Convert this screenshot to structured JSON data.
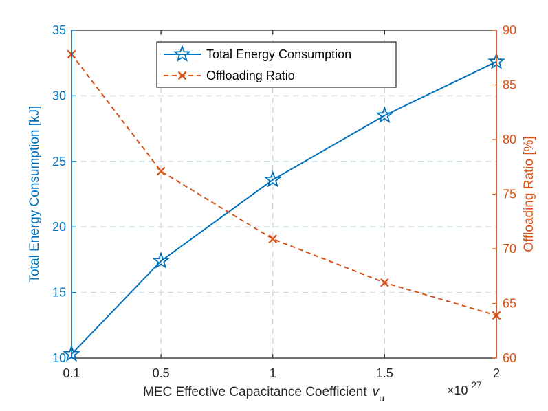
{
  "chart_data": {
    "type": "line",
    "x": [
      0.1,
      0.5,
      1,
      1.5,
      2
    ],
    "x_tick_labels": [
      "0.1",
      "0.5",
      "1",
      "1.5",
      "2"
    ],
    "xlim": [
      0.1,
      2
    ],
    "xlabel": "MEC Effective Capacitance Coefficient",
    "xlabel_symbol": "v",
    "xlabel_subscript": "u",
    "x_exponent_base": "×10",
    "x_exponent_power": "-27",
    "left_axis": {
      "label": "Total Energy Consumption [kJ]",
      "ylim": [
        10,
        35
      ],
      "ticks": [
        10,
        15,
        20,
        25,
        30,
        35
      ],
      "color": "#0072BD"
    },
    "right_axis": {
      "label": "Offloading Ratio [%]",
      "ylim": [
        60,
        90
      ],
      "ticks": [
        60,
        65,
        70,
        75,
        80,
        85,
        90
      ],
      "color": "#D95319"
    },
    "series": [
      {
        "name": "Total Energy Consumption",
        "axis": "left",
        "values": [
          10.3,
          17.4,
          23.6,
          28.5,
          32.6
        ],
        "color": "#0072BD",
        "marker": "star",
        "line_style": "solid"
      },
      {
        "name": "Offloading Ratio",
        "axis": "right",
        "values": [
          87.8,
          77.1,
          70.9,
          66.9,
          63.9
        ],
        "color": "#D95319",
        "marker": "x",
        "line_style": "dashed"
      }
    ],
    "grid": true,
    "legend_position": "top-center"
  }
}
